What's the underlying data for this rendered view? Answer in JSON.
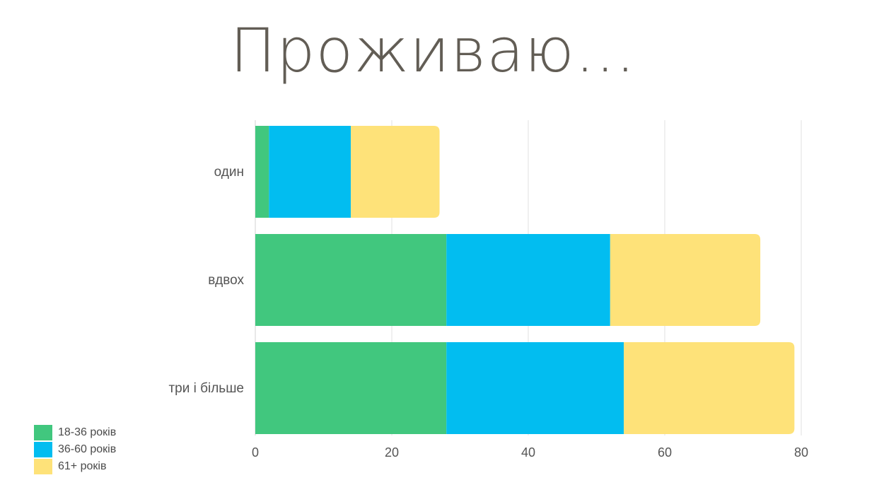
{
  "chart_data": {
    "type": "bar",
    "orientation": "horizontal",
    "stacked": true,
    "title": "Проживаю…",
    "categories": [
      "один",
      "вдвох",
      "три і більше"
    ],
    "series": [
      {
        "name": "18-36 років",
        "color": "#41c77e",
        "values": [
          2,
          28,
          28
        ]
      },
      {
        "name": "36-60 років",
        "color": "#02bdf0",
        "values": [
          12,
          24,
          26
        ]
      },
      {
        "name": "61+ років",
        "color": "#fee279",
        "values": [
          13,
          22,
          25
        ]
      }
    ],
    "xlim": [
      0,
      80
    ],
    "xticks": [
      0,
      20,
      40,
      60,
      80
    ],
    "grid": "vertical",
    "legend_position": "bottom-left"
  }
}
